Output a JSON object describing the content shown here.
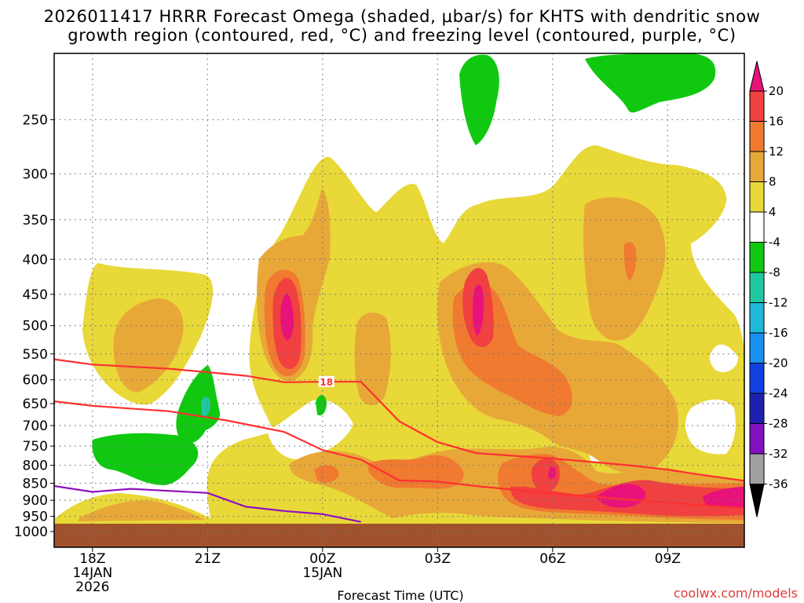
{
  "title": {
    "line1": "2026011417 HRRR Forecast Omega (shaded, μbar/s) for KHTS with dendritic snow",
    "line2": "growth region (contoured, red, °C) and freezing level (contoured, purple, °C)"
  },
  "credit": "coolwx.com/models",
  "chart_data": {
    "type": "contour",
    "title": "2026011417 HRRR Forecast Omega (shaded, μbar/s) for KHTS with dendritic snow growth region (contoured, red, °C) and freezing level (contoured, purple, °C)",
    "xlabel": "Forecast Time (UTC)",
    "ylabel": "",
    "x_range_hours": [
      17,
      35
    ],
    "y_range_hpa": [
      1000,
      200
    ],
    "y_ticks": [
      250,
      300,
      350,
      400,
      450,
      500,
      550,
      600,
      650,
      700,
      750,
      800,
      850,
      900,
      950,
      1000
    ],
    "x_ticks": [
      {
        "hour": 18,
        "lines": [
          "18Z",
          "14JAN",
          "2026"
        ]
      },
      {
        "hour": 21,
        "lines": [
          "21Z"
        ]
      },
      {
        "hour": 24,
        "lines": [
          "00Z",
          "15JAN"
        ]
      },
      {
        "hour": 27,
        "lines": [
          "03Z"
        ]
      },
      {
        "hour": 30,
        "lines": [
          "06Z"
        ]
      },
      {
        "hour": 33,
        "lines": [
          "09Z"
        ]
      }
    ],
    "grid": true,
    "colorbar": {
      "levels": [
        20,
        16,
        12,
        8,
        4,
        -4,
        -8,
        -12,
        -16,
        -20,
        -24,
        -28,
        -32,
        -36
      ],
      "colors": [
        "#e8127a",
        "#f04040",
        "#f07a30",
        "#e8a838",
        "#e8d838",
        "#ffffff",
        "#10c810",
        "#20c8a0",
        "#20b8d8",
        "#1890f0",
        "#1040e0",
        "#2020b0",
        "#8010c0",
        "#a0a0a0",
        "#000000"
      ]
    },
    "contour_labels": [
      {
        "value": "18",
        "hour": 24.1,
        "pressure_hpa": 605
      }
    ],
    "series": [
      {
        "name": "dendritic growth upper bound (red)",
        "color": "#ff3030",
        "points": [
          [
            17,
            560
          ],
          [
            18,
            570
          ],
          [
            20,
            578
          ],
          [
            22,
            592
          ],
          [
            23,
            605
          ],
          [
            24,
            604
          ],
          [
            25,
            604
          ],
          [
            26,
            690
          ],
          [
            27,
            740
          ],
          [
            28,
            768
          ],
          [
            30,
            782
          ],
          [
            32,
            800
          ],
          [
            33,
            812
          ],
          [
            34,
            828
          ],
          [
            35,
            843
          ]
        ]
      },
      {
        "name": "dendritic growth lower bound (red)",
        "color": "#ff3030",
        "points": [
          [
            17,
            645
          ],
          [
            18,
            655
          ],
          [
            20,
            667
          ],
          [
            21.5,
            688
          ],
          [
            23,
            715
          ],
          [
            24,
            760
          ],
          [
            25,
            785
          ],
          [
            26,
            842
          ],
          [
            27,
            845
          ],
          [
            28,
            858
          ],
          [
            30,
            880
          ],
          [
            32,
            898
          ],
          [
            34,
            916
          ],
          [
            35,
            925
          ]
        ]
      },
      {
        "name": "freezing level (purple)",
        "color": "#9010c0",
        "points": [
          [
            17,
            858
          ],
          [
            18,
            875
          ],
          [
            19,
            866
          ],
          [
            21,
            878
          ],
          [
            22,
            920
          ],
          [
            23,
            933
          ],
          [
            24,
            943
          ],
          [
            25,
            968
          ]
        ]
      }
    ]
  }
}
